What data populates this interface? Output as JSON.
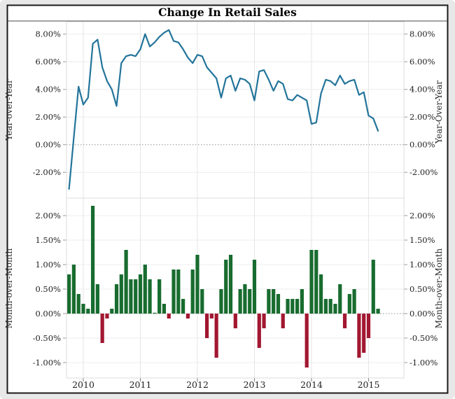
{
  "title": "Change In Retail Sales",
  "colors": {
    "background": "#e8e8e8",
    "plot_background": "#ffffff",
    "frame_border": "#1a1a1a",
    "line": "#23749a",
    "bar_positive": "#186c2f",
    "bar_negative": "#a21731",
    "grid": "#e6e6e6",
    "zero_line": "#8f8f8f",
    "axis_text": "#1f1f1f"
  },
  "x_axis": {
    "tick_labels": [
      "2010",
      "2011",
      "2012",
      "2013",
      "2014",
      "2015"
    ]
  },
  "chart_data": [
    {
      "type": "line",
      "name": "Year-over-Year change in retail sales",
      "ylabel_left": "Year-over-Year",
      "ylabel_right": "Year-Over-Year",
      "yticks": [
        "8.00%",
        "6.00%",
        "4.00%",
        "2.00%",
        "0.00%",
        "-2.00%"
      ],
      "ytick_values": [
        8,
        6,
        4,
        2,
        0,
        -2
      ],
      "ylim": [
        -3.9,
        8.95
      ],
      "x_start": "2009-10",
      "x_interval": "month",
      "grid": true,
      "values": [
        -3.2,
        0.5,
        4.2,
        2.9,
        3.4,
        7.3,
        7.6,
        5.6,
        4.6,
        4.0,
        2.8,
        5.9,
        6.4,
        6.5,
        6.4,
        6.9,
        8.0,
        7.1,
        7.4,
        7.8,
        8.1,
        8.3,
        7.5,
        7.4,
        6.9,
        6.3,
        5.9,
        6.5,
        6.4,
        5.6,
        5.2,
        4.8,
        3.4,
        4.8,
        5.0,
        3.9,
        4.8,
        4.7,
        4.4,
        3.2,
        5.3,
        5.4,
        4.7,
        3.9,
        4.6,
        4.4,
        3.3,
        3.2,
        3.6,
        3.4,
        3.2,
        1.5,
        1.6,
        3.7,
        4.7,
        4.6,
        4.3,
        5.0,
        4.4,
        4.6,
        4.7,
        3.6,
        3.8,
        2.1,
        1.9,
        1.0
      ]
    },
    {
      "type": "bar",
      "name": "Month-over-Month change in retail sales",
      "ylabel_left": "Month-over-Month",
      "ylabel_right": "Month-over-Month",
      "yticks": [
        "2.00%",
        "1.50%",
        "1.00%",
        "0.50%",
        "0.00%",
        "-0.50%",
        "-1.00%"
      ],
      "ytick_values": [
        2,
        1.5,
        1,
        0.5,
        0,
        -0.5,
        -1
      ],
      "ylim": [
        -1.55,
        2.36
      ],
      "x_start": "2009-10",
      "x_interval": "month",
      "grid": true,
      "values": [
        0.8,
        1.0,
        0.4,
        0.2,
        0.1,
        2.2,
        0.6,
        -0.6,
        -0.1,
        0.1,
        0.6,
        0.8,
        1.3,
        0.7,
        0.7,
        0.8,
        1.0,
        0.7,
        0.0,
        0.7,
        0.2,
        -0.1,
        0.9,
        0.9,
        0.3,
        -0.1,
        0.9,
        1.2,
        0.5,
        -0.5,
        -0.1,
        -0.9,
        0.5,
        1.1,
        1.2,
        -0.3,
        0.5,
        0.6,
        0.5,
        1.1,
        -0.7,
        -0.3,
        0.5,
        0.5,
        0.4,
        -0.3,
        0.3,
        0.3,
        0.3,
        0.5,
        -1.1,
        1.3,
        1.3,
        0.8,
        0.3,
        0.3,
        0.2,
        0.6,
        -0.3,
        0.4,
        0.5,
        -0.9,
        -0.8,
        -0.5,
        1.1,
        0.1
      ]
    }
  ]
}
